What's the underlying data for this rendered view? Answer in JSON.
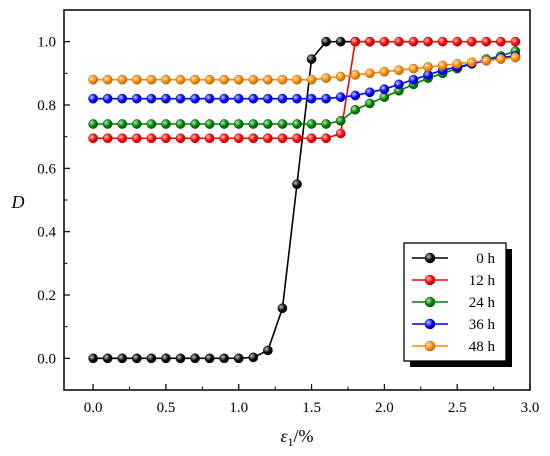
{
  "chart_data": {
    "type": "line",
    "xlabel_symbol": "ε",
    "xlabel_sub": "1",
    "xlabel_unit": "/%",
    "ylabel": "D",
    "xlim": [
      -0.2,
      3.0
    ],
    "ylim": [
      -0.1,
      1.1
    ],
    "xticks": [
      0.0,
      0.5,
      1.0,
      1.5,
      2.0,
      2.5,
      3.0
    ],
    "yticks": [
      0.0,
      0.2,
      0.4,
      0.6,
      0.8,
      1.0
    ],
    "xtick_labels": [
      "0.0",
      "0.5",
      "1.0",
      "1.5",
      "2.0",
      "2.5",
      "3.0"
    ],
    "ytick_labels": [
      "0.0",
      "0.2",
      "0.4",
      "0.6",
      "0.8",
      "1.0"
    ],
    "grid": false,
    "legend_position": "bottom-right",
    "x": [
      0.0,
      0.1,
      0.2,
      0.3,
      0.4,
      0.5,
      0.6,
      0.7,
      0.8,
      0.9,
      1.0,
      1.1,
      1.2,
      1.3,
      1.4,
      1.5,
      1.6,
      1.7,
      1.8,
      1.9,
      2.0,
      2.1,
      2.2,
      2.3,
      2.4,
      2.5,
      2.6,
      2.7,
      2.8,
      2.9
    ],
    "series": [
      {
        "name": "0 h",
        "color": "#000000",
        "x": [
          0.0,
          0.1,
          0.2,
          0.3,
          0.4,
          0.5,
          0.6,
          0.7,
          0.8,
          0.9,
          1.0,
          1.1,
          1.2,
          1.3,
          1.4,
          1.5,
          1.6,
          1.7,
          1.8,
          1.9
        ],
        "values": [
          0.0,
          0.0,
          0.0,
          0.0,
          0.0,
          0.0,
          0.0,
          0.0,
          0.0,
          0.0,
          0.0,
          0.003,
          0.025,
          0.158,
          0.55,
          0.945,
          1.0,
          1.0,
          1.0,
          1.0
        ]
      },
      {
        "name": "12 h",
        "color": "#ff0000",
        "x": [
          0.0,
          0.1,
          0.2,
          0.3,
          0.4,
          0.5,
          0.6,
          0.7,
          0.8,
          0.9,
          1.0,
          1.1,
          1.2,
          1.3,
          1.4,
          1.5,
          1.6,
          1.7,
          1.8,
          1.9,
          2.0,
          2.1,
          2.2,
          2.3,
          2.4,
          2.5,
          2.6,
          2.7,
          2.8,
          2.9
        ],
        "values": [
          0.695,
          0.695,
          0.695,
          0.695,
          0.695,
          0.695,
          0.695,
          0.695,
          0.695,
          0.695,
          0.695,
          0.695,
          0.695,
          0.695,
          0.695,
          0.695,
          0.695,
          0.71,
          1.0,
          1.0,
          1.0,
          1.0,
          1.0,
          1.0,
          1.0,
          1.0,
          1.0,
          1.0,
          1.0,
          1.0
        ]
      },
      {
        "name": "24 h",
        "color": "#008000",
        "x": [
          0.0,
          0.1,
          0.2,
          0.3,
          0.4,
          0.5,
          0.6,
          0.7,
          0.8,
          0.9,
          1.0,
          1.1,
          1.2,
          1.3,
          1.4,
          1.5,
          1.6,
          1.7,
          1.8,
          1.9,
          2.0,
          2.1,
          2.2,
          2.3,
          2.4,
          2.5,
          2.6,
          2.7,
          2.8,
          2.9
        ],
        "values": [
          0.74,
          0.74,
          0.74,
          0.74,
          0.74,
          0.74,
          0.74,
          0.74,
          0.74,
          0.74,
          0.74,
          0.74,
          0.74,
          0.74,
          0.74,
          0.74,
          0.74,
          0.75,
          0.785,
          0.805,
          0.825,
          0.845,
          0.865,
          0.885,
          0.9,
          0.915,
          0.93,
          0.945,
          0.955,
          0.97
        ]
      },
      {
        "name": "36 h",
        "color": "#0000ff",
        "x": [
          0.0,
          0.1,
          0.2,
          0.3,
          0.4,
          0.5,
          0.6,
          0.7,
          0.8,
          0.9,
          1.0,
          1.1,
          1.2,
          1.3,
          1.4,
          1.5,
          1.6,
          1.7,
          1.8,
          1.9,
          2.0,
          2.1,
          2.2,
          2.3,
          2.4,
          2.5,
          2.6,
          2.7,
          2.8,
          2.9
        ],
        "values": [
          0.82,
          0.82,
          0.82,
          0.82,
          0.82,
          0.82,
          0.82,
          0.82,
          0.82,
          0.82,
          0.82,
          0.82,
          0.82,
          0.82,
          0.82,
          0.82,
          0.82,
          0.825,
          0.83,
          0.84,
          0.85,
          0.865,
          0.88,
          0.895,
          0.91,
          0.92,
          0.93,
          0.94,
          0.95,
          0.955
        ]
      },
      {
        "name": "48 h",
        "color": "#ff8c00",
        "x": [
          0.0,
          0.1,
          0.2,
          0.3,
          0.4,
          0.5,
          0.6,
          0.7,
          0.8,
          0.9,
          1.0,
          1.1,
          1.2,
          1.3,
          1.4,
          1.5,
          1.6,
          1.7,
          1.8,
          1.9,
          2.0,
          2.1,
          2.2,
          2.3,
          2.4,
          2.5,
          2.6,
          2.7,
          2.8,
          2.9
        ],
        "values": [
          0.88,
          0.88,
          0.88,
          0.88,
          0.88,
          0.88,
          0.88,
          0.88,
          0.88,
          0.88,
          0.88,
          0.88,
          0.88,
          0.88,
          0.88,
          0.88,
          0.885,
          0.89,
          0.895,
          0.9,
          0.905,
          0.91,
          0.915,
          0.92,
          0.925,
          0.93,
          0.935,
          0.94,
          0.945,
          0.95
        ]
      }
    ]
  }
}
